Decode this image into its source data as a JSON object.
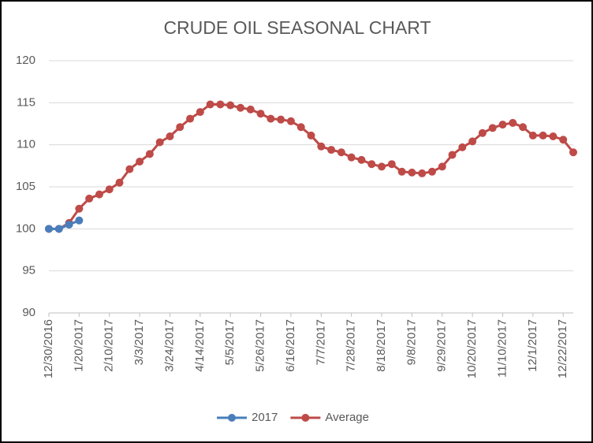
{
  "chart_data": {
    "type": "line",
    "title": "CRUDE OIL SEASONAL CHART",
    "categories": [
      "12/30/2016",
      null,
      null,
      "1/20/2017",
      null,
      null,
      "2/10/2017",
      null,
      null,
      "3/3/2017",
      null,
      null,
      "3/24/2017",
      null,
      null,
      "4/14/2017",
      null,
      null,
      "5/5/2017",
      null,
      null,
      "5/26/2017",
      null,
      null,
      "6/16/2017",
      null,
      null,
      "7/7/2017",
      null,
      null,
      "7/28/2017",
      null,
      null,
      "8/18/2017",
      null,
      null,
      "9/8/2017",
      null,
      null,
      "9/29/2017",
      null,
      null,
      "10/20/2017",
      null,
      null,
      "11/10/2017",
      null,
      null,
      "12/1/2017",
      null,
      null,
      "12/22/2017",
      null
    ],
    "series": [
      {
        "name": "2017",
        "color": "#4a7ebb",
        "values": [
          100,
          100,
          100.5,
          101,
          null,
          null,
          null,
          null,
          null,
          null,
          null,
          null,
          null,
          null,
          null,
          null,
          null,
          null,
          null,
          null,
          null,
          null,
          null,
          null,
          null,
          null,
          null,
          null,
          null,
          null,
          null,
          null,
          null,
          null,
          null,
          null,
          null,
          null,
          null,
          null,
          null,
          null,
          null,
          null,
          null,
          null,
          null,
          null,
          null,
          null,
          null,
          null,
          null
        ]
      },
      {
        "name": "Average",
        "color": "#be4b48",
        "values": [
          100,
          100,
          100.7,
          102.4,
          103.6,
          104.1,
          104.7,
          105.5,
          107.1,
          108.0,
          108.9,
          110.3,
          111.0,
          112.1,
          113.1,
          113.9,
          114.8,
          114.8,
          114.7,
          114.4,
          114.2,
          113.7,
          113.1,
          113.0,
          112.8,
          112.1,
          111.1,
          109.8,
          109.4,
          109.1,
          108.5,
          108.2,
          107.7,
          107.4,
          107.7,
          106.8,
          106.7,
          106.6,
          106.8,
          107.4,
          108.8,
          109.7,
          110.4,
          111.4,
          112.0,
          112.4,
          112.6,
          112.1,
          111.1,
          111.1,
          111.0,
          110.6,
          109.1
        ]
      }
    ],
    "ylim": [
      90,
      120
    ],
    "yticks": [
      90,
      95,
      100,
      105,
      110,
      115,
      120
    ],
    "grid": true,
    "legend": "bottom"
  }
}
